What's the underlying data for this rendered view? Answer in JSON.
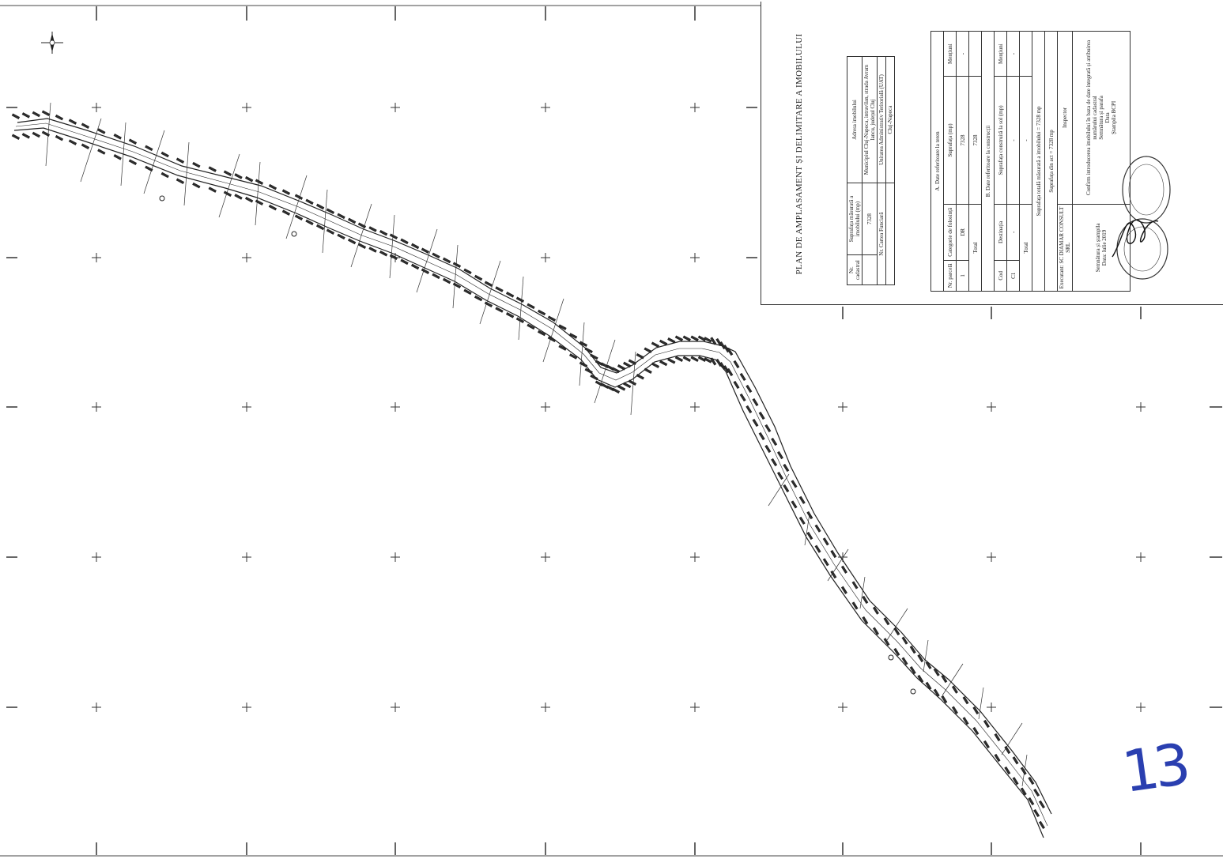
{
  "plan": {
    "title": "PLAN DE AMPLASAMENT ȘI DELIMITARE A IMOBILULUI",
    "id_table": {
      "headers": [
        "Nr. cadastral",
        "Suprafața măsurată a imobilului (mp)",
        "Adresa imobilului"
      ],
      "row": [
        "",
        "7328",
        "Municipiul Cluj-Napoca, intravilan, strada Avram Iancu, județul Cluj"
      ],
      "land_book_label": "Nr. Cartea Funciară",
      "uat_label": "Unitatea Administrativ Teritorială (UAT)",
      "uat_value": "Cluj-Napoca"
    },
    "section_a": {
      "title": "A. Date referitoare la teren",
      "headers": [
        "Nr. parcelă",
        "Categorie de folosință",
        "Suprafața (mp)",
        "Mențiuni"
      ],
      "rows": [
        [
          "1",
          "DR",
          "7328",
          "-"
        ]
      ],
      "total_label": "Total",
      "total_value": "7328"
    },
    "section_b": {
      "title": "B. Date referitoare la construcții",
      "headers": [
        "Cod",
        "Destinația",
        "Suprafața construită la sol (mp)",
        "Mențiuni"
      ],
      "rows": [
        [
          "C1",
          "-",
          "-",
          "-"
        ]
      ],
      "total_label": "Total",
      "total_value": "-"
    },
    "surface_total": "Suprafața totală măsurată a imobilului = 7328 mp",
    "surface_act": "Suprafața din act = 7328 mp",
    "executant": "Executant: SC DIAMAR CONSULT SRL",
    "inspector": "Inspector",
    "confirm_text": "Confirm introducerea imobilului în baza de date integrată și atribuirea numărului cadastral",
    "sign_label": "Semnătura și parafa",
    "date_label": "Data",
    "date_value": "Data: Iulie 2019",
    "stamp_label": "Ștampila BCPI",
    "stamp_text": "Semnătura și ștampila"
  },
  "page_number": "13",
  "colors": {
    "ink": "#222222",
    "handwriting": "#2a3fb0",
    "paper": "#ffffff"
  }
}
